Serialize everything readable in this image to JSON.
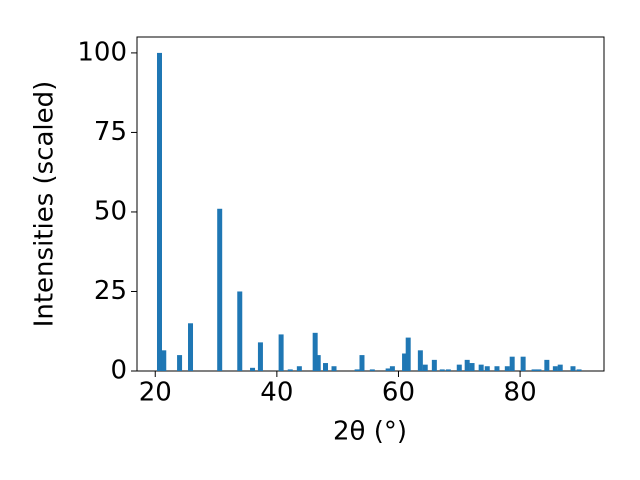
{
  "chart_data": {
    "type": "bar",
    "xlabel": "2θ (°)",
    "ylabel": "Intensities (scaled)",
    "x": [
      20.7,
      21.4,
      24.0,
      25.8,
      30.6,
      33.9,
      36.0,
      37.3,
      40.7,
      42.2,
      43.7,
      46.3,
      46.8,
      48.0,
      49.4,
      53.2,
      54.0,
      55.7,
      58.3,
      59.0,
      61.0,
      61.6,
      63.6,
      64.4,
      65.9,
      67.2,
      68.2,
      70.0,
      71.3,
      72.1,
      73.6,
      74.6,
      76.2,
      77.9,
      78.7,
      80.5,
      82.3,
      83.1,
      84.4,
      85.8,
      86.6,
      88.7,
      89.7
    ],
    "values": [
      100,
      6.5,
      5,
      15,
      51,
      25,
      1,
      9,
      11.5,
      0.5,
      1.5,
      12,
      5,
      2.5,
      1.5,
      0.5,
      5,
      0.5,
      0.8,
      1.5,
      5.5,
      10.5,
      6.5,
      2,
      3.5,
      0.5,
      0.5,
      2,
      3.5,
      2.5,
      2,
      1.5,
      1.5,
      1.5,
      4.5,
      4.5,
      0.5,
      0.5,
      3.5,
      1.5,
      2,
      1.5,
      0.5
    ],
    "color": "#1f77b4",
    "xlim": [
      17.0,
      93.8
    ],
    "xticks": [
      20,
      40,
      60,
      80
    ],
    "ylim": [
      0,
      105
    ],
    "yticks": [
      0,
      25,
      50,
      75,
      100
    ],
    "grid": false
  }
}
